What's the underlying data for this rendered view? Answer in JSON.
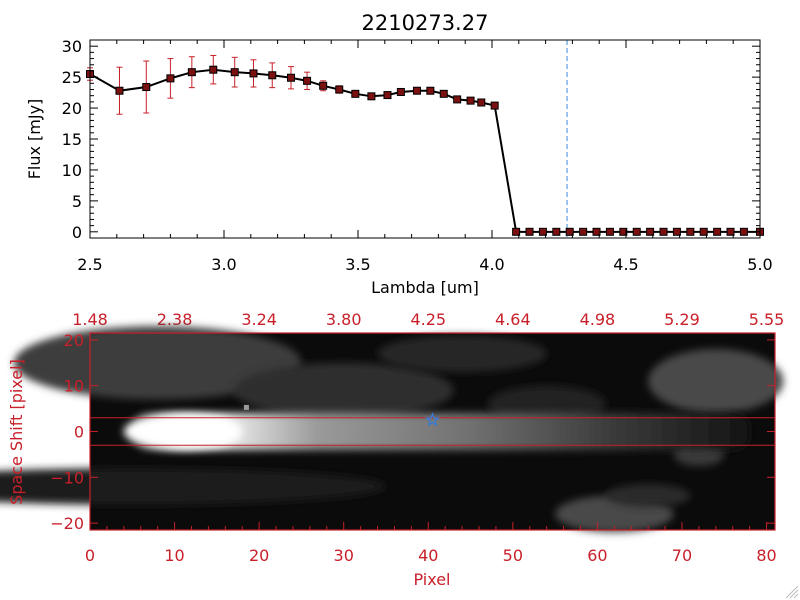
{
  "chart_data": [
    {
      "type": "line",
      "title": "2210273.27",
      "xlabel": "Lambda [um]",
      "ylabel": "Flux [mJy]",
      "xlim": [
        2.5,
        5.0
      ],
      "ylim": [
        -1,
        31
      ],
      "xticks": [
        2.5,
        3.0,
        3.5,
        4.0,
        4.5,
        5.0
      ],
      "xtick_labels": [
        "2.5",
        "3.0",
        "3.5",
        "4.0",
        "4.5",
        "5.0"
      ],
      "yticks": [
        0,
        5,
        10,
        15,
        20,
        25,
        30
      ],
      "ytick_labels": [
        "0",
        "5",
        "10",
        "15",
        "20",
        "25",
        "30"
      ],
      "grid": false,
      "reference_line_x": 4.28,
      "series": [
        {
          "x": [
            2.5,
            2.61,
            2.71,
            2.8,
            2.88,
            2.96,
            3.04,
            3.11,
            3.18,
            3.25,
            3.31,
            3.37,
            3.43,
            3.49,
            3.55,
            3.61,
            3.66,
            3.72,
            3.77,
            3.82,
            3.87,
            3.92,
            3.96,
            4.01,
            4.09,
            4.14,
            4.19,
            4.24,
            4.29,
            4.34,
            4.39,
            4.44,
            4.49,
            4.54,
            4.59,
            4.64,
            4.69,
            4.74,
            4.79,
            4.84,
            4.89,
            4.94,
            5.0
          ],
          "y": [
            25.5,
            22.8,
            23.4,
            24.8,
            25.8,
            26.2,
            25.8,
            25.6,
            25.3,
            24.9,
            24.4,
            23.6,
            23.0,
            22.3,
            21.9,
            22.1,
            22.6,
            22.8,
            22.8,
            22.3,
            21.4,
            21.2,
            20.9,
            20.4,
            0,
            0,
            0,
            0,
            0,
            0,
            0,
            0,
            0,
            0,
            0,
            0,
            0,
            0,
            0,
            0,
            0,
            0,
            0
          ],
          "yerr": [
            1.0,
            3.8,
            4.2,
            3.2,
            2.5,
            2.3,
            2.4,
            2.2,
            2.0,
            1.8,
            1.4,
            0.8,
            0.6,
            0.4,
            0.4,
            0.4,
            0.4,
            0.4,
            0.4,
            0.4,
            0.4,
            0.4,
            0.4,
            0.4,
            0.4,
            0.3,
            0.3,
            0.3,
            0.3,
            0.3,
            0.3,
            0.3,
            0.3,
            0.3,
            0.3,
            0.3,
            0.3,
            0.3,
            0.3,
            0.3,
            0.3,
            0.3,
            0.3
          ]
        }
      ]
    },
    {
      "type": "heatmap",
      "xlabel": "Pixel",
      "ylabel": "Space Shift [pixel]",
      "xlim": [
        0,
        81
      ],
      "ylim": [
        -21.5,
        21.5
      ],
      "xticks": [
        0,
        10,
        20,
        30,
        40,
        50,
        60,
        70,
        80
      ],
      "xtick_labels": [
        "0",
        "10",
        "20",
        "30",
        "40",
        "50",
        "60",
        "70",
        "80"
      ],
      "yticks": [
        -20,
        -10,
        0,
        10,
        20
      ],
      "ytick_labels": [
        "−20",
        "−10",
        "0",
        "10",
        "20"
      ],
      "top_axis_labels": [
        "1.48",
        "2.38",
        "3.24",
        "3.80",
        "4.25",
        "4.64",
        "4.98",
        "5.29",
        "5.55"
      ],
      "aperture_lines_y": [
        3,
        -3
      ],
      "marker": {
        "shape": "star",
        "x": 40.5,
        "y": 2.5,
        "color": "#3a7bd5"
      },
      "colormap": "grayscale"
    }
  ],
  "colors": {
    "accent": "#c8202a",
    "data_line": "#000000",
    "marker_fill": "#7a1010",
    "errorbar": "#c8202a",
    "reference_line": "#3a8fdc",
    "star": "#3a7bd5"
  }
}
